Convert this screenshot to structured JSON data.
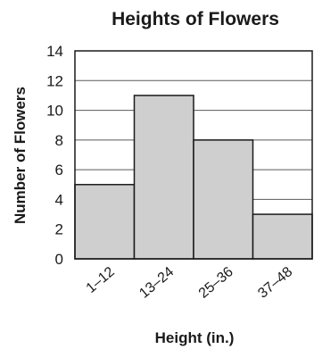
{
  "chart_data": {
    "type": "bar",
    "title": "Heights of Flowers",
    "xlabel": "Height (in.)",
    "ylabel": "Number of Flowers",
    "categories": [
      "1–12",
      "13–24",
      "25–36",
      "37–48"
    ],
    "values": [
      5,
      11,
      8,
      3
    ],
    "ylim": [
      0,
      14
    ],
    "yticks": [
      0,
      2,
      4,
      6,
      8,
      10,
      12,
      14
    ],
    "grid": true,
    "bar_color": "#cfcfcf",
    "line_color": "#1a1a1a"
  }
}
